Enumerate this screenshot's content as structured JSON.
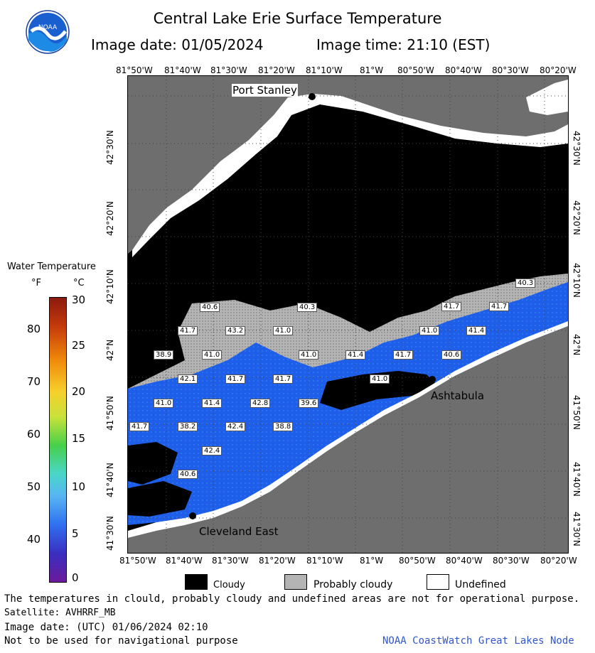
{
  "header": {
    "title": "Central Lake Erie Surface Temperature",
    "image_date": "Image date: 01/05/2024",
    "image_time": "Image time: 21:10 (EST)"
  },
  "map": {
    "lon_labels": [
      "81°50'W",
      "81°40'W",
      "81°30'W",
      "81°20'W",
      "81°10'W",
      "81°W",
      "80°50'W",
      "80°40'W",
      "80°30'W",
      "80°20'W"
    ],
    "lat_labels": [
      "42°30'N",
      "42°20'N",
      "42°10'N",
      "42°N",
      "41°50'N",
      "41°40'N",
      "41°30'N"
    ],
    "places": {
      "port_stanley": "Port Stanley",
      "ashtabula": "Ashtabula",
      "cleveland_east": "Cleveland East"
    },
    "temp_labels": [
      "40.6",
      "40.3",
      "41.7",
      "43.2",
      "41.0",
      "41.7",
      "41.0",
      "41.4",
      "40.3",
      "41.7",
      "38.9",
      "41.0",
      "41.0",
      "41.4",
      "41.7",
      "40.6",
      "42.1",
      "41.7",
      "41.7",
      "41.0",
      "41.0",
      "41.4",
      "42.8",
      "39.6",
      "41.7",
      "38.2",
      "42.4",
      "38.8",
      "42.4",
      "40.6"
    ]
  },
  "legend": {
    "title": "Water Temperature",
    "unit_f": "°F",
    "unit_c": "°C",
    "f_ticks": [
      "80",
      "70",
      "60",
      "50",
      "40"
    ],
    "c_ticks": [
      "30",
      "25",
      "20",
      "15",
      "10",
      "5",
      "0"
    ]
  },
  "key": {
    "cloudy": "Cloudy",
    "probably_cloudy": "Probably cloudy",
    "undefined": "Undefined"
  },
  "footer": {
    "note": "The temperatures in clould, probably cloudy and undefined areas are not for operational purpose.",
    "satellite": "Satellite: AVHRRF_MB",
    "utc_date": "Image date: (UTC) 01/06/2024  02:10",
    "navigation": "Not to be used for navigational purpose",
    "node": "NOAA CoastWatch Great Lakes Node"
  },
  "colors": {
    "land": "#6e6e6e",
    "cloud": "#000000",
    "probably_cloudy": "#b4b4b4",
    "undefined": "#ffffff",
    "water_blue": "#1f5ee8"
  },
  "logo_text": "NOAA"
}
